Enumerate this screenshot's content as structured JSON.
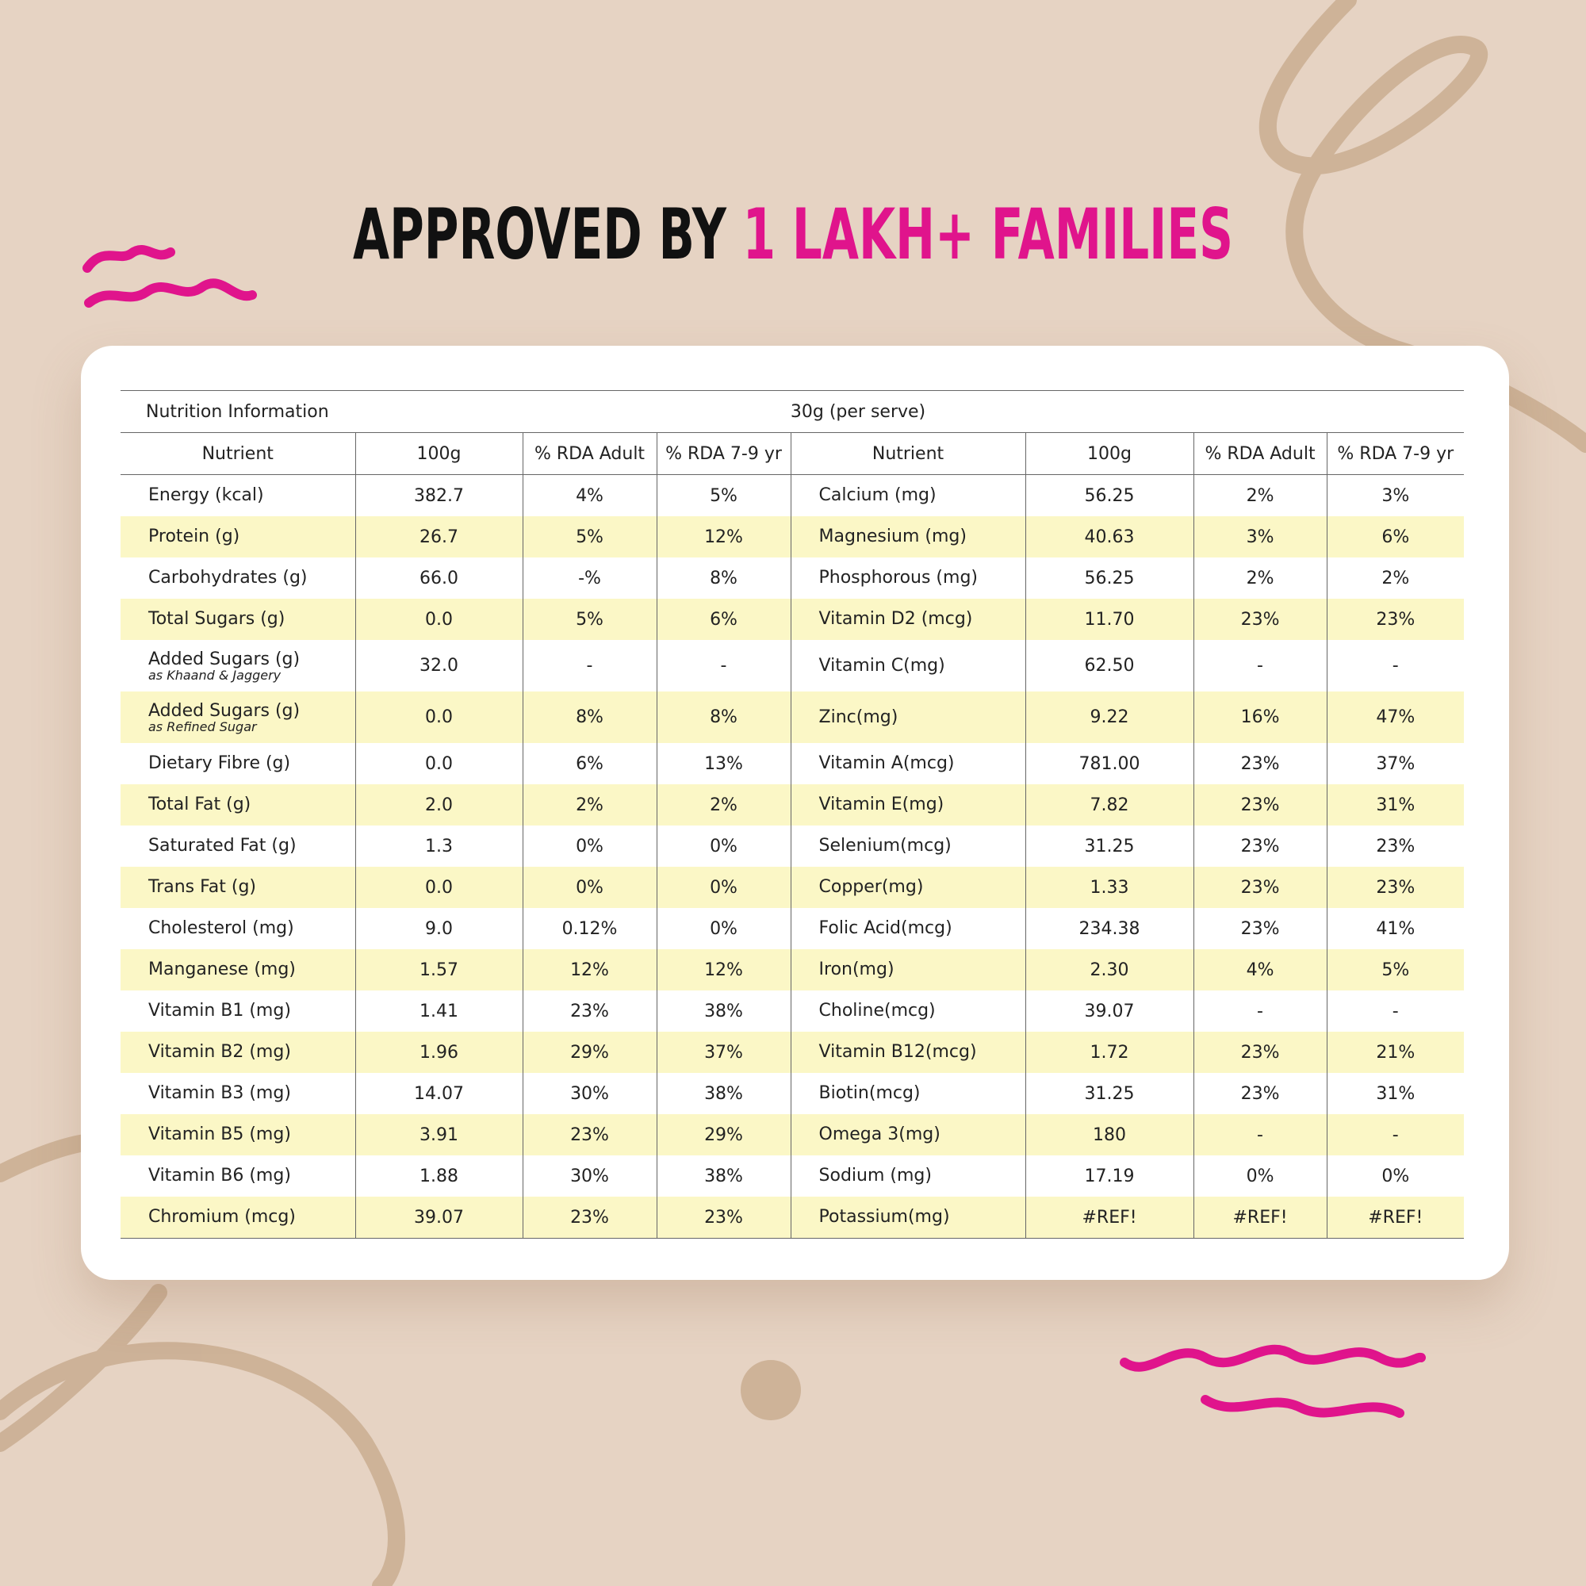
{
  "header": {
    "title_dark": "APPROVED BY",
    "title_accent": "1 LAKH+ FAMILIES"
  },
  "table": {
    "title": "Nutrition Information",
    "serving": "30g (per serve)",
    "columns": [
      "Nutrient",
      "100g",
      "% RDA Adult",
      "% RDA 7-9 yr",
      "Nutrient",
      "100g",
      "% RDA Adult",
      "% RDA 7-9 yr"
    ],
    "rows": [
      {
        "cells": [
          "Energy (kcal)",
          "382.7",
          "4%",
          "5%",
          "Calcium (mg)",
          "56.25",
          "2%",
          "3%"
        ]
      },
      {
        "cells": [
          "Protein (g)",
          "26.7",
          "5%",
          "12%",
          "Magnesium (mg)",
          "40.63",
          "3%",
          "6%"
        ]
      },
      {
        "cells": [
          "Carbohydrates (g)",
          "66.0",
          "-%",
          "8%",
          "Phosphorous (mg)",
          "56.25",
          "2%",
          "2%"
        ]
      },
      {
        "cells": [
          "Total Sugars (g)",
          "0.0",
          "5%",
          "6%",
          "Vitamin D2 (mcg)",
          "11.70",
          "23%",
          "23%"
        ]
      },
      {
        "cells": [
          "Added Sugars (g)",
          "32.0",
          "-",
          "-",
          "Vitamin C(mg)",
          "62.50",
          "-",
          "-"
        ],
        "note": "as Khaand & Jaggery"
      },
      {
        "cells": [
          "Added Sugars (g)",
          "0.0",
          "8%",
          "8%",
          "Zinc(mg)",
          "9.22",
          "16%",
          "47%"
        ],
        "note": "as Refined Sugar"
      },
      {
        "cells": [
          "Dietary Fibre (g)",
          "0.0",
          "6%",
          "13%",
          "Vitamin A(mcg)",
          "781.00",
          "23%",
          "37%"
        ]
      },
      {
        "cells": [
          "Total Fat (g)",
          "2.0",
          "2%",
          "2%",
          "Vitamin E(mg)",
          "7.82",
          "23%",
          "31%"
        ]
      },
      {
        "cells": [
          "Saturated Fat (g)",
          "1.3",
          "0%",
          "0%",
          "Selenium(mcg)",
          "31.25",
          "23%",
          "23%"
        ]
      },
      {
        "cells": [
          "Trans Fat (g)",
          "0.0",
          "0%",
          "0%",
          "Copper(mg)",
          "1.33",
          "23%",
          "23%"
        ]
      },
      {
        "cells": [
          "Cholesterol (mg)",
          "9.0",
          "0.12%",
          "0%",
          "Folic Acid(mcg)",
          "234.38",
          "23%",
          "41%"
        ]
      },
      {
        "cells": [
          "Manganese (mg)",
          "1.57",
          "12%",
          "12%",
          "Iron(mg)",
          "2.30",
          "4%",
          "5%"
        ]
      },
      {
        "cells": [
          "Vitamin B1 (mg)",
          "1.41",
          "23%",
          "38%",
          "Choline(mcg)",
          "39.07",
          "-",
          "-"
        ]
      },
      {
        "cells": [
          "Vitamin B2 (mg)",
          "1.96",
          "29%",
          "37%",
          "Vitamin B12(mcg)",
          "1.72",
          "23%",
          "21%"
        ]
      },
      {
        "cells": [
          "Vitamin B3 (mg)",
          "14.07",
          "30%",
          "38%",
          "Biotin(mcg)",
          "31.25",
          "23%",
          "31%"
        ]
      },
      {
        "cells": [
          "Vitamin B5 (mg)",
          "3.91",
          "23%",
          "29%",
          "Omega 3(mg)",
          "180",
          "-",
          "-"
        ]
      },
      {
        "cells": [
          "Vitamin B6 (mg)",
          "1.88",
          "30%",
          "38%",
          "Sodium (mg)",
          "17.19",
          "0%",
          "0%"
        ]
      },
      {
        "cells": [
          "Chromium (mcg)",
          "39.07",
          "23%",
          "23%",
          "Potassium(mg)",
          "#REF!",
          "#REF!",
          "#REF!"
        ]
      }
    ]
  }
}
